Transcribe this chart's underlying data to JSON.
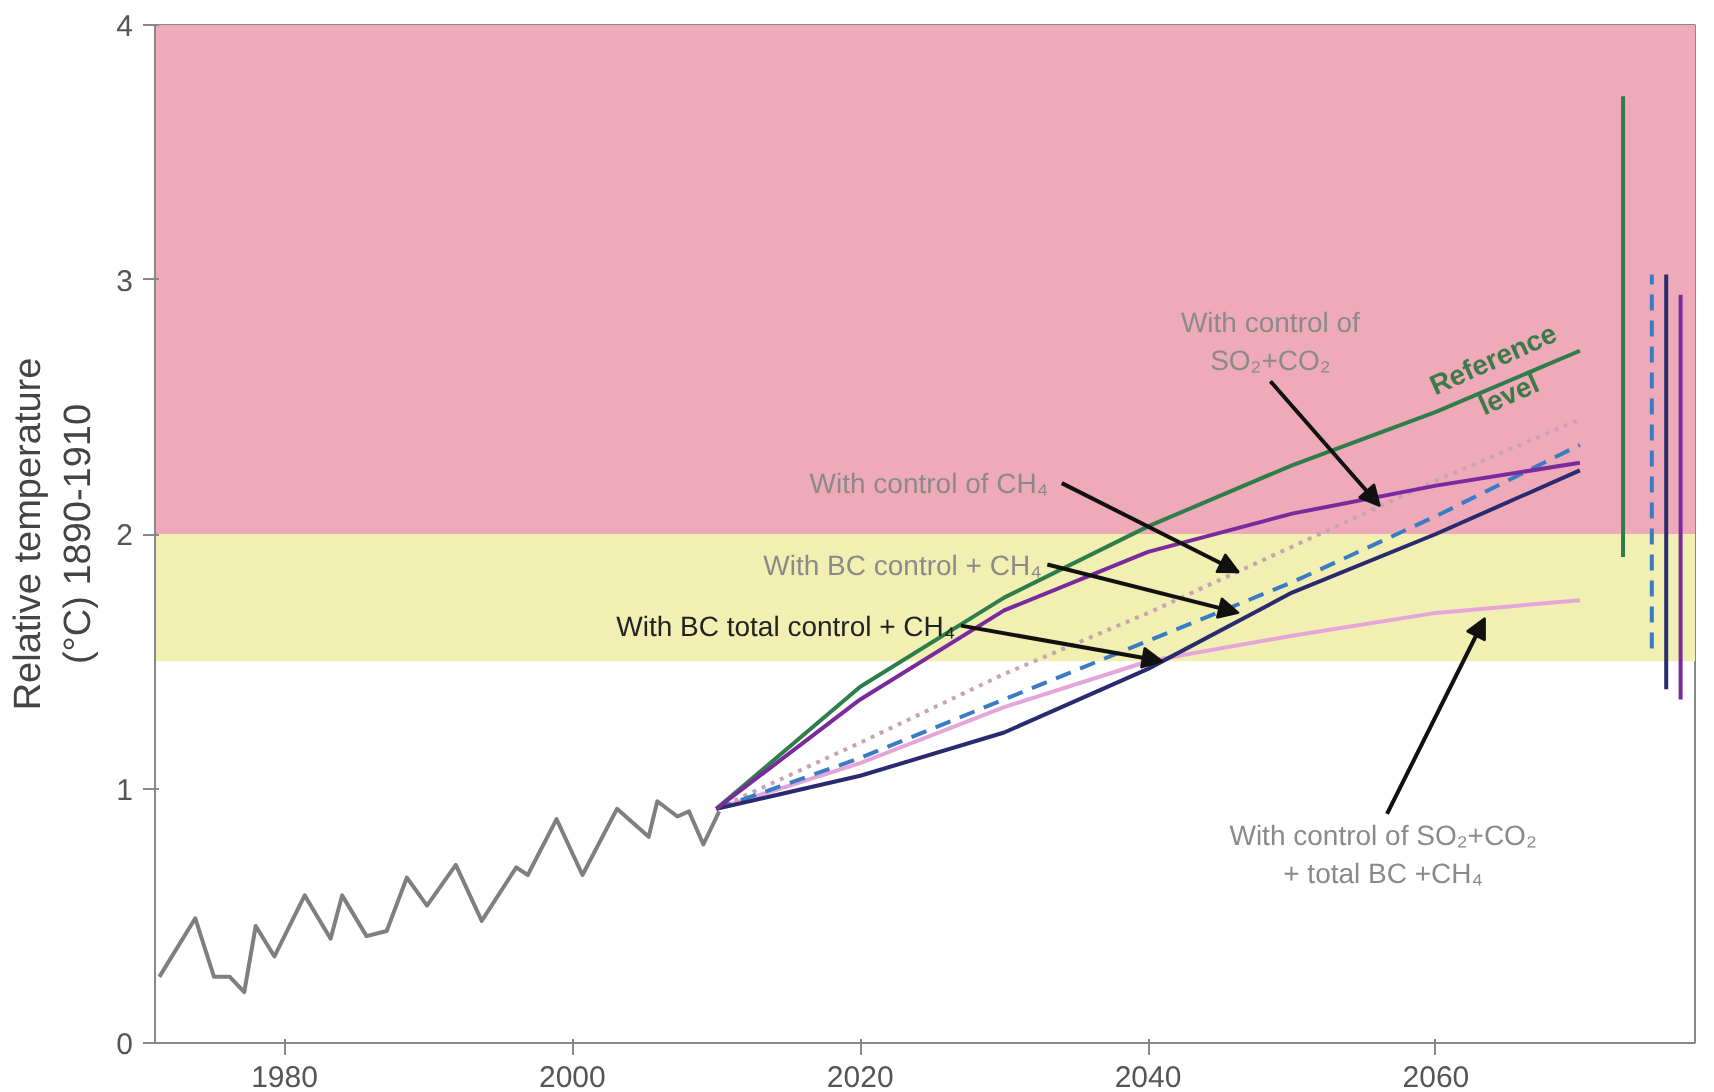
{
  "chart_data": {
    "type": "line",
    "ylabel": "Relative temperature\n(°C) 1890-1910",
    "xlim": [
      1971,
      2078
    ],
    "ylim": [
      0,
      4
    ],
    "xticks": [
      1980,
      2000,
      2020,
      2040,
      2060
    ],
    "yticks": [
      0,
      1,
      2,
      3,
      4
    ],
    "grid": false,
    "bands": [
      {
        "axis": "y",
        "from": 2,
        "to": 4,
        "color": "#efaab9"
      },
      {
        "axis": "y",
        "from": 1.5,
        "to": 2,
        "color": "#f1efb2"
      }
    ],
    "series": [
      {
        "color": "#7f7f7f",
        "x": [
          1971.3,
          1973.8,
          1975.1,
          1976.2,
          1977.2,
          1978,
          1979.3,
          1981.4,
          1983.2,
          1984,
          1985.7,
          1987.1,
          1988.5,
          1989.9,
          1991.9,
          1993.7,
          1996.1,
          1996.9,
          1998.9,
          2000.7,
          2003.1,
          2005.3,
          2005.9,
          2007.3,
          2008.1,
          2009.1,
          2010.2
        ],
        "values": [
          0.26,
          0.49,
          0.26,
          0.26,
          0.2,
          0.46,
          0.34,
          0.58,
          0.41,
          0.58,
          0.42,
          0.44,
          0.65,
          0.54,
          0.7,
          0.48,
          0.69,
          0.66,
          0.88,
          0.66,
          0.92,
          0.81,
          0.95,
          0.89,
          0.91,
          0.78,
          0.91
        ]
      },
      {
        "color": "#e4a6d8",
        "x": [
          2010,
          2020,
          2030,
          2040,
          2050,
          2060,
          2070
        ],
        "values": [
          0.92,
          1.1,
          1.32,
          1.5,
          1.6,
          1.69,
          1.74
        ]
      },
      {
        "color": "#c9a3b3",
        "line_style": "dotted",
        "x": [
          2010,
          2020,
          2030,
          2040,
          2050,
          2060,
          2070
        ],
        "values": [
          0.92,
          1.18,
          1.45,
          1.69,
          1.95,
          2.21,
          2.45
        ]
      },
      {
        "color": "#3a7cc4",
        "line_style": "dashed",
        "x": [
          2010,
          2020,
          2030,
          2040,
          2050,
          2060,
          2070
        ],
        "values": [
          0.92,
          1.12,
          1.35,
          1.58,
          1.81,
          2.07,
          2.35
        ]
      },
      {
        "color": "#2a2a6e",
        "x": [
          2010,
          2020,
          2030,
          2040,
          2050,
          2060,
          2070
        ],
        "values": [
          0.92,
          1.05,
          1.22,
          1.47,
          1.77,
          2.0,
          2.25
        ]
      },
      {
        "color": "#2e7d4a",
        "x": [
          2010,
          2020,
          2030,
          2040,
          2050,
          2060,
          2070
        ],
        "values": [
          0.92,
          1.4,
          1.75,
          2.03,
          2.27,
          2.48,
          2.72
        ]
      },
      {
        "color": "#7b2a9e",
        "x": [
          2010,
          2020,
          2030,
          2040,
          2050,
          2060,
          2070
        ],
        "values": [
          0.92,
          1.35,
          1.7,
          1.93,
          2.08,
          2.19,
          2.28
        ]
      },
      {
        "color": "#2e7d4a",
        "x": [
          2073,
          2073
        ],
        "values": [
          1.91,
          3.72
        ]
      },
      {
        "color": "#3a7cc4",
        "line_style": "dashed",
        "x": [
          2075,
          2075
        ],
        "values": [
          1.55,
          3.02
        ]
      },
      {
        "color": "#2a2a6e",
        "x": [
          2076,
          2076
        ],
        "values": [
          1.39,
          3.02
        ]
      },
      {
        "color": "#7b2a9e",
        "x": [
          2077,
          2077
        ],
        "values": [
          1.35,
          2.94
        ]
      }
    ],
    "annotations": [
      {
        "text": "With control of\nSO₂+CO₂",
        "x": 2056.1,
        "y": 2.11
      },
      {
        "text": "Reference\nlevel",
        "x": 2066,
        "y": 2.62
      },
      {
        "text": "With control of  CH₄",
        "x": 2046.3,
        "y": 1.85
      },
      {
        "text": "With BC control + CH₄",
        "x": 2046.3,
        "y": 1.69
      },
      {
        "text": "With BC total control + CH₄",
        "x": 2041,
        "y": 1.5
      },
      {
        "text": "With control of  SO₂+CO₂\n+ total BC  +CH₄",
        "x": 2063.4,
        "y": 1.67
      }
    ]
  }
}
